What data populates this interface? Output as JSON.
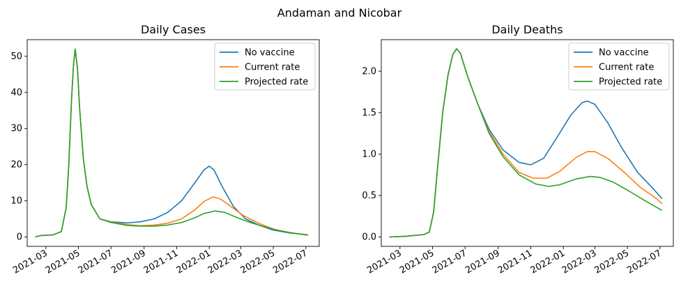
{
  "suptitle": "Andaman and Nicobar",
  "chart_data": [
    {
      "type": "line",
      "title": "Daily Cases",
      "xlabel": "",
      "ylabel": "",
      "x_axis": "date",
      "xlim": [
        "2021-01-25",
        "2022-07-26"
      ],
      "ylim": [
        -2.6,
        54.6
      ],
      "yticks": [
        0,
        10,
        20,
        30,
        40,
        50
      ],
      "xticks": [
        "2021-03",
        "2021-05",
        "2021-07",
        "2021-09",
        "2021-11",
        "2022-01",
        "2022-03",
        "2022-05",
        "2022-07"
      ],
      "legend": "top-right",
      "series": [
        {
          "name": "No vaccine",
          "color": "#1f77b4",
          "points": [
            [
              "2021-02-09",
              0
            ],
            [
              "2021-02-20",
              0.4
            ],
            [
              "2021-03-15",
              0.6
            ],
            [
              "2021-03-30",
              1.5
            ],
            [
              "2021-04-08",
              8
            ],
            [
              "2021-04-13",
              20
            ],
            [
              "2021-04-18",
              38
            ],
            [
              "2021-04-22",
              48
            ],
            [
              "2021-04-25",
              52
            ],
            [
              "2021-04-29",
              47
            ],
            [
              "2021-05-03",
              36
            ],
            [
              "2021-05-10",
              22
            ],
            [
              "2021-05-17",
              14
            ],
            [
              "2021-05-25",
              9
            ],
            [
              "2021-06-10",
              5
            ],
            [
              "2021-07-01",
              4.2
            ],
            [
              "2021-08-01",
              3.9
            ],
            [
              "2021-08-25",
              4.2
            ],
            [
              "2021-09-20",
              5
            ],
            [
              "2021-10-15",
              6.8
            ],
            [
              "2021-11-10",
              10
            ],
            [
              "2021-12-05",
              15
            ],
            [
              "2021-12-22",
              18.5
            ],
            [
              "2022-01-01",
              19.6
            ],
            [
              "2022-01-10",
              18.5
            ],
            [
              "2022-01-25",
              14
            ],
            [
              "2022-02-15",
              8.5
            ],
            [
              "2022-03-10",
              5
            ],
            [
              "2022-04-05",
              3.2
            ],
            [
              "2022-05-01",
              1.9
            ],
            [
              "2022-06-01",
              1.1
            ],
            [
              "2022-07-05",
              0.6
            ]
          ]
        },
        {
          "name": "Current rate",
          "color": "#ff7f0e",
          "points": [
            [
              "2021-02-09",
              0
            ],
            [
              "2021-02-20",
              0.4
            ],
            [
              "2021-03-15",
              0.6
            ],
            [
              "2021-03-30",
              1.5
            ],
            [
              "2021-04-08",
              8
            ],
            [
              "2021-04-13",
              20
            ],
            [
              "2021-04-18",
              38
            ],
            [
              "2021-04-22",
              48
            ],
            [
              "2021-04-25",
              52
            ],
            [
              "2021-04-29",
              47
            ],
            [
              "2021-05-03",
              36
            ],
            [
              "2021-05-10",
              22
            ],
            [
              "2021-05-17",
              14
            ],
            [
              "2021-05-25",
              9
            ],
            [
              "2021-06-10",
              5
            ],
            [
              "2021-07-01",
              4.1
            ],
            [
              "2021-08-01",
              3.4
            ],
            [
              "2021-08-25",
              3.1
            ],
            [
              "2021-09-20",
              3.3
            ],
            [
              "2021-10-15",
              3.8
            ],
            [
              "2021-11-10",
              5
            ],
            [
              "2021-12-05",
              7.5
            ],
            [
              "2021-12-22",
              9.8
            ],
            [
              "2022-01-08",
              11.1
            ],
            [
              "2022-01-22",
              10.5
            ],
            [
              "2022-02-10",
              8.5
            ],
            [
              "2022-03-05",
              6
            ],
            [
              "2022-04-05",
              3.7
            ],
            [
              "2022-05-01",
              2.2
            ],
            [
              "2022-06-01",
              1.2
            ],
            [
              "2022-07-05",
              0.6
            ]
          ]
        },
        {
          "name": "Projected rate",
          "color": "#2ca02c",
          "points": [
            [
              "2021-02-09",
              0
            ],
            [
              "2021-02-20",
              0.4
            ],
            [
              "2021-03-15",
              0.6
            ],
            [
              "2021-03-30",
              1.5
            ],
            [
              "2021-04-08",
              8
            ],
            [
              "2021-04-13",
              20
            ],
            [
              "2021-04-18",
              38
            ],
            [
              "2021-04-22",
              48
            ],
            [
              "2021-04-25",
              52
            ],
            [
              "2021-04-29",
              47
            ],
            [
              "2021-05-03",
              36
            ],
            [
              "2021-05-10",
              22
            ],
            [
              "2021-05-17",
              14
            ],
            [
              "2021-05-25",
              9
            ],
            [
              "2021-06-10",
              5
            ],
            [
              "2021-07-01",
              4.0
            ],
            [
              "2021-08-01",
              3.2
            ],
            [
              "2021-08-25",
              3.0
            ],
            [
              "2021-09-20",
              3.0
            ],
            [
              "2021-10-15",
              3.3
            ],
            [
              "2021-11-10",
              4
            ],
            [
              "2021-12-05",
              5.3
            ],
            [
              "2021-12-22",
              6.5
            ],
            [
              "2022-01-12",
              7.2
            ],
            [
              "2022-01-30",
              6.8
            ],
            [
              "2022-02-20",
              5.5
            ],
            [
              "2022-03-15",
              4.2
            ],
            [
              "2022-04-10",
              3
            ],
            [
              "2022-05-10",
              1.8
            ],
            [
              "2022-06-10",
              1.0
            ],
            [
              "2022-07-05",
              0.5
            ]
          ]
        }
      ]
    },
    {
      "type": "line",
      "title": "Daily Deaths",
      "xlabel": "",
      "ylabel": "",
      "x_axis": "date",
      "xlim": [
        "2021-01-25",
        "2022-07-26"
      ],
      "ylim": [
        -0.113,
        2.38
      ],
      "yticks": [
        0.0,
        0.5,
        1.0,
        1.5,
        2.0
      ],
      "ytick_labels": [
        "0.0",
        "0.5",
        "1.0",
        "1.5",
        "2.0"
      ],
      "xticks": [
        "2021-03",
        "2021-05",
        "2021-07",
        "2021-09",
        "2021-11",
        "2022-01",
        "2022-03",
        "2022-05",
        "2022-07"
      ],
      "legend": "top-right",
      "series": [
        {
          "name": "No vaccine",
          "color": "#1f77b4",
          "points": [
            [
              "2021-02-09",
              0
            ],
            [
              "2021-03-15",
              0.01
            ],
            [
              "2021-04-15",
              0.03
            ],
            [
              "2021-04-25",
              0.06
            ],
            [
              "2021-05-03",
              0.3
            ],
            [
              "2021-05-10",
              0.8
            ],
            [
              "2021-05-20",
              1.5
            ],
            [
              "2021-05-30",
              1.95
            ],
            [
              "2021-06-08",
              2.2
            ],
            [
              "2021-06-15",
              2.27
            ],
            [
              "2021-06-22",
              2.22
            ],
            [
              "2021-07-05",
              1.95
            ],
            [
              "2021-07-25",
              1.6
            ],
            [
              "2021-08-15",
              1.3
            ],
            [
              "2021-09-10",
              1.05
            ],
            [
              "2021-10-10",
              0.9
            ],
            [
              "2021-11-01",
              0.87
            ],
            [
              "2021-11-25",
              0.95
            ],
            [
              "2021-12-20",
              1.2
            ],
            [
              "2022-01-15",
              1.47
            ],
            [
              "2022-02-05",
              1.62
            ],
            [
              "2022-02-15",
              1.64
            ],
            [
              "2022-03-01",
              1.6
            ],
            [
              "2022-03-25",
              1.38
            ],
            [
              "2022-04-20",
              1.08
            ],
            [
              "2022-05-20",
              0.78
            ],
            [
              "2022-06-20",
              0.57
            ],
            [
              "2022-07-05",
              0.46
            ]
          ]
        },
        {
          "name": "Current rate",
          "color": "#ff7f0e",
          "points": [
            [
              "2021-02-09",
              0
            ],
            [
              "2021-03-15",
              0.01
            ],
            [
              "2021-04-15",
              0.03
            ],
            [
              "2021-04-25",
              0.06
            ],
            [
              "2021-05-03",
              0.3
            ],
            [
              "2021-05-10",
              0.8
            ],
            [
              "2021-05-20",
              1.5
            ],
            [
              "2021-05-30",
              1.95
            ],
            [
              "2021-06-08",
              2.2
            ],
            [
              "2021-06-15",
              2.27
            ],
            [
              "2021-06-22",
              2.22
            ],
            [
              "2021-07-05",
              1.95
            ],
            [
              "2021-07-25",
              1.6
            ],
            [
              "2021-08-15",
              1.27
            ],
            [
              "2021-09-10",
              1.0
            ],
            [
              "2021-10-10",
              0.78
            ],
            [
              "2021-11-05",
              0.71
            ],
            [
              "2021-12-01",
              0.71
            ],
            [
              "2021-12-25",
              0.79
            ],
            [
              "2022-01-25",
              0.96
            ],
            [
              "2022-02-15",
              1.03
            ],
            [
              "2022-03-01",
              1.03
            ],
            [
              "2022-03-25",
              0.95
            ],
            [
              "2022-04-25",
              0.78
            ],
            [
              "2022-05-25",
              0.6
            ],
            [
              "2022-06-25",
              0.46
            ],
            [
              "2022-07-05",
              0.4
            ]
          ]
        },
        {
          "name": "Projected rate",
          "color": "#2ca02c",
          "points": [
            [
              "2021-02-09",
              0
            ],
            [
              "2021-03-15",
              0.01
            ],
            [
              "2021-04-15",
              0.03
            ],
            [
              "2021-04-25",
              0.06
            ],
            [
              "2021-05-03",
              0.3
            ],
            [
              "2021-05-10",
              0.8
            ],
            [
              "2021-05-20",
              1.5
            ],
            [
              "2021-05-30",
              1.95
            ],
            [
              "2021-06-08",
              2.2
            ],
            [
              "2021-06-15",
              2.27
            ],
            [
              "2021-06-22",
              2.22
            ],
            [
              "2021-07-05",
              1.95
            ],
            [
              "2021-07-25",
              1.6
            ],
            [
              "2021-08-15",
              1.25
            ],
            [
              "2021-09-10",
              0.97
            ],
            [
              "2021-10-10",
              0.75
            ],
            [
              "2021-11-10",
              0.64
            ],
            [
              "2021-12-05",
              0.61
            ],
            [
              "2021-12-25",
              0.63
            ],
            [
              "2022-01-25",
              0.7
            ],
            [
              "2022-02-20",
              0.73
            ],
            [
              "2022-03-10",
              0.72
            ],
            [
              "2022-04-05",
              0.66
            ],
            [
              "2022-05-05",
              0.55
            ],
            [
              "2022-06-05",
              0.43
            ],
            [
              "2022-07-05",
              0.32
            ]
          ]
        }
      ]
    }
  ]
}
